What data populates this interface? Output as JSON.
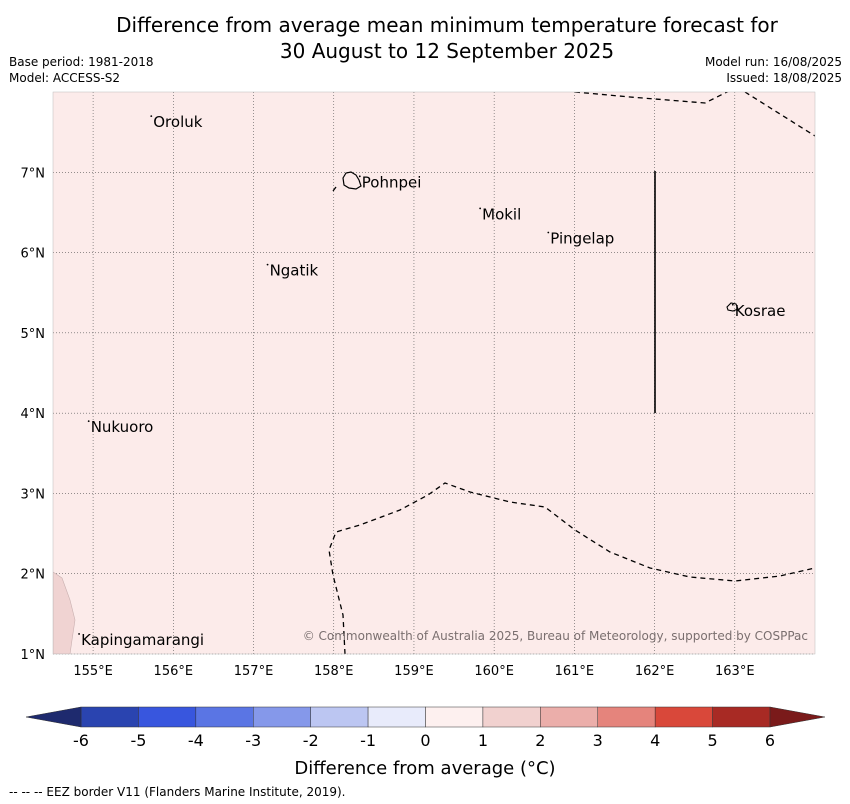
{
  "title_line1": "Difference from average mean minimum temperature forecast for",
  "title_line2": "30 August to 12 September 2025",
  "base_period": "Base period: 1981-2018",
  "model": "Model: ACCESS-S2",
  "model_run": "Model run: 16/08/2025",
  "issued": "Issued: 18/08/2025",
  "copyright": "© Commonwealth of Australia 2025, Bureau of Meteorology, supported by COSPPac",
  "footer": "--  --  -- EEZ border V11 (Flanders Marine Institute, 2019).",
  "map": {
    "fill_color": "#fcebea",
    "lon_range": [
      154.5,
      164.0
    ],
    "lat_range": [
      1.0,
      8.0
    ],
    "lon_ticks": [
      {
        "value": 155,
        "label": "155°E"
      },
      {
        "value": 156,
        "label": "156°E"
      },
      {
        "value": 157,
        "label": "157°E"
      },
      {
        "value": 158,
        "label": "158°E"
      },
      {
        "value": 159,
        "label": "159°E"
      },
      {
        "value": 160,
        "label": "160°E"
      },
      {
        "value": 161,
        "label": "161°E"
      },
      {
        "value": 162,
        "label": "162°E"
      },
      {
        "value": 163,
        "label": "163°E"
      }
    ],
    "lat_ticks": [
      {
        "value": 1,
        "label": "1°N"
      },
      {
        "value": 2,
        "label": "2°N"
      },
      {
        "value": 3,
        "label": "3°N"
      },
      {
        "value": 4,
        "label": "4°N"
      },
      {
        "value": 5,
        "label": "5°N"
      },
      {
        "value": 6,
        "label": "6°N"
      },
      {
        "value": 7,
        "label": "7°N"
      }
    ],
    "places": [
      {
        "name": "Oroluk",
        "lon": 155.75,
        "lat": 7.65
      },
      {
        "name": "Pohnpei",
        "lon": 158.35,
        "lat": 6.9
      },
      {
        "name": "Mokil",
        "lon": 159.85,
        "lat": 6.5
      },
      {
        "name": "Pingelap",
        "lon": 160.7,
        "lat": 6.2
      },
      {
        "name": "Ngatik",
        "lon": 157.2,
        "lat": 5.8
      },
      {
        "name": "Kosrae",
        "lon": 163.0,
        "lat": 5.3
      },
      {
        "name": "Nukuoro",
        "lon": 154.97,
        "lat": 3.85
      },
      {
        "name": "Kapingamarangi",
        "lon": 154.85,
        "lat": 1.2
      }
    ]
  },
  "colorbar": {
    "label": "Difference from average (°C)",
    "ticks": [
      "-6",
      "-5",
      "-4",
      "-3",
      "-2",
      "-1",
      "0",
      "1",
      "2",
      "3",
      "4",
      "5",
      "6"
    ],
    "under_color": "#1e2a6e",
    "over_color": "#7a1a1a",
    "colors": [
      "#2a44b0",
      "#3856de",
      "#5a75e4",
      "#8598ea",
      "#bcc6f2",
      "#e8ebfb",
      "#fdf0ef",
      "#f1d1cf",
      "#ebaeaa",
      "#e5847c",
      "#d9483a",
      "#a82a24"
    ]
  }
}
